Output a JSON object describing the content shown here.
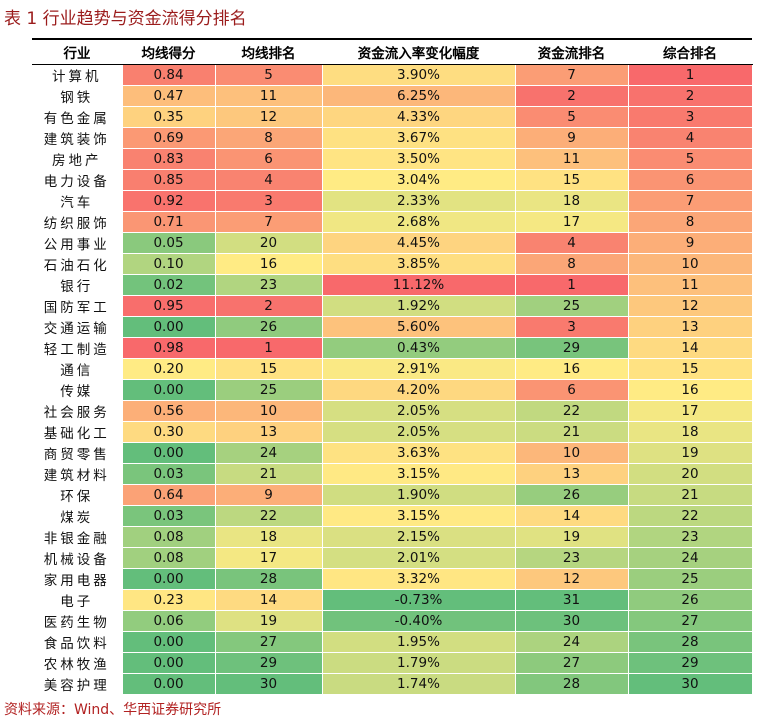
{
  "header": {
    "title": "表 1 行业趋势与资金流得分排名"
  },
  "table": {
    "columns": [
      "行业",
      "均线得分",
      "均线排名",
      "资金流入率变化幅度",
      "资金流排名",
      "综合排名"
    ],
    "rows": [
      [
        "计算机",
        "0.84",
        "5",
        "3.90%",
        "7",
        "1"
      ],
      [
        "钢铁",
        "0.47",
        "11",
        "6.25%",
        "2",
        "2"
      ],
      [
        "有色金属",
        "0.35",
        "12",
        "4.33%",
        "5",
        "3"
      ],
      [
        "建筑装饰",
        "0.69",
        "8",
        "3.67%",
        "9",
        "4"
      ],
      [
        "房地产",
        "0.83",
        "6",
        "3.50%",
        "11",
        "5"
      ],
      [
        "电力设备",
        "0.85",
        "4",
        "3.04%",
        "15",
        "6"
      ],
      [
        "汽车",
        "0.92",
        "3",
        "2.33%",
        "18",
        "7"
      ],
      [
        "纺织服饰",
        "0.71",
        "7",
        "2.68%",
        "17",
        "8"
      ],
      [
        "公用事业",
        "0.05",
        "20",
        "4.45%",
        "4",
        "9"
      ],
      [
        "石油石化",
        "0.10",
        "16",
        "3.85%",
        "8",
        "10"
      ],
      [
        "银行",
        "0.02",
        "23",
        "11.12%",
        "1",
        "11"
      ],
      [
        "国防军工",
        "0.95",
        "2",
        "1.92%",
        "25",
        "12"
      ],
      [
        "交通运输",
        "0.00",
        "26",
        "5.60%",
        "3",
        "13"
      ],
      [
        "轻工制造",
        "0.98",
        "1",
        "0.43%",
        "29",
        "14"
      ],
      [
        "通信",
        "0.20",
        "15",
        "2.91%",
        "16",
        "15"
      ],
      [
        "传媒",
        "0.00",
        "25",
        "4.20%",
        "6",
        "16"
      ],
      [
        "社会服务",
        "0.56",
        "10",
        "2.05%",
        "22",
        "17"
      ],
      [
        "基础化工",
        "0.30",
        "13",
        "2.05%",
        "21",
        "18"
      ],
      [
        "商贸零售",
        "0.00",
        "24",
        "3.63%",
        "10",
        "19"
      ],
      [
        "建筑材料",
        "0.03",
        "21",
        "3.15%",
        "13",
        "20"
      ],
      [
        "环保",
        "0.64",
        "9",
        "1.90%",
        "26",
        "21"
      ],
      [
        "煤炭",
        "0.03",
        "22",
        "3.15%",
        "14",
        "22"
      ],
      [
        "非银金融",
        "0.08",
        "18",
        "2.15%",
        "19",
        "23"
      ],
      [
        "机械设备",
        "0.08",
        "17",
        "2.01%",
        "23",
        "24"
      ],
      [
        "家用电器",
        "0.00",
        "28",
        "3.32%",
        "12",
        "25"
      ],
      [
        "电子",
        "0.23",
        "14",
        "-0.73%",
        "31",
        "26"
      ],
      [
        "医药生物",
        "0.06",
        "19",
        "-0.40%",
        "30",
        "27"
      ],
      [
        "食品饮料",
        "0.00",
        "27",
        "1.95%",
        "24",
        "28"
      ],
      [
        "农林牧渔",
        "0.00",
        "29",
        "1.79%",
        "27",
        "29"
      ],
      [
        "美容护理",
        "0.00",
        "30",
        "1.74%",
        "28",
        "30"
      ]
    ]
  },
  "footer": {
    "source": "资料来源：Wind、华西证券研究所"
  }
}
